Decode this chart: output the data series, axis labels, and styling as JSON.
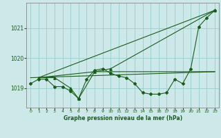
{
  "title": "Graphe pression niveau de la mer (hPa)",
  "bg_color": "#cce8e8",
  "grid_color": "#99cccc",
  "line_color": "#1a5c1a",
  "xlim": [
    -0.5,
    23.5
  ],
  "ylim": [
    1018.35,
    1021.85
  ],
  "yticks": [
    1019,
    1020,
    1021
  ],
  "xticks": [
    0,
    1,
    2,
    3,
    4,
    5,
    6,
    7,
    8,
    9,
    10,
    11,
    12,
    13,
    14,
    15,
    16,
    17,
    18,
    19,
    20,
    21,
    22,
    23
  ],
  "series": [
    {
      "x": [
        0,
        1,
        2,
        3,
        4,
        5,
        6,
        7,
        8,
        9,
        10,
        11,
        12,
        13,
        14,
        15,
        16,
        17,
        18,
        19,
        20,
        21,
        22,
        23
      ],
      "y": [
        1019.15,
        1019.3,
        1019.3,
        1019.05,
        1019.05,
        1018.9,
        1018.65,
        1019.3,
        1019.6,
        1019.65,
        1019.5,
        1019.4,
        1019.35,
        1019.15,
        1018.85,
        1018.8,
        1018.8,
        1018.85,
        1019.3,
        1019.15,
        1019.65,
        1021.05,
        1021.35,
        1021.6
      ],
      "marker": "D",
      "markersize": 2,
      "linewidth": 0.8
    },
    {
      "x": [
        0,
        23
      ],
      "y": [
        1019.35,
        1019.55
      ],
      "marker": null,
      "markersize": 0,
      "linewidth": 0.8
    },
    {
      "x": [
        1,
        23
      ],
      "y": [
        1019.35,
        1021.6
      ],
      "marker": null,
      "markersize": 0,
      "linewidth": 0.8
    },
    {
      "x": [
        1,
        3,
        5,
        6,
        8,
        10,
        23
      ],
      "y": [
        1019.35,
        1019.35,
        1019.0,
        1018.65,
        1019.55,
        1019.65,
        1021.6
      ],
      "marker": "^",
      "markersize": 2.5,
      "linewidth": 0.8
    },
    {
      "x": [
        1,
        8,
        19,
        23
      ],
      "y": [
        1019.35,
        1019.55,
        1019.55,
        1019.55
      ],
      "marker": null,
      "markersize": 0,
      "linewidth": 0.8
    }
  ]
}
